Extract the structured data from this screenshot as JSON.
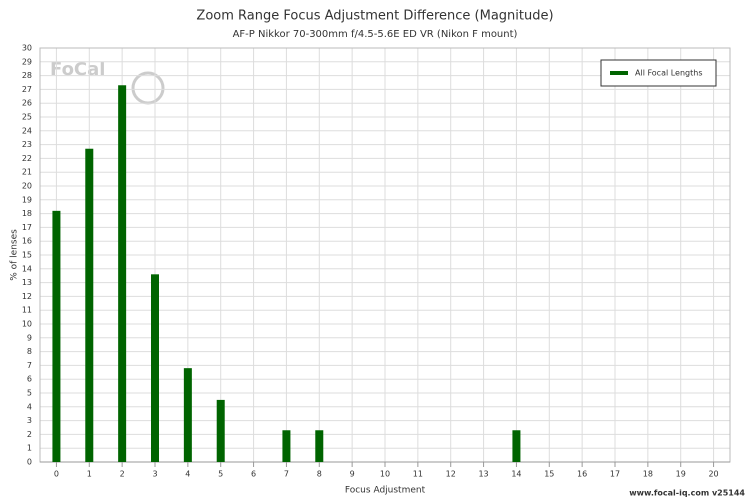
{
  "chart_data": {
    "type": "bar",
    "title": "Zoom Range Focus Adjustment Difference (Magnitude)",
    "subtitle": "AF-P Nikkor 70-300mm f/4.5-5.6E ED VR (Nikon F mount)",
    "x_label": "Focus Adjustment",
    "y_label": "% of lenses",
    "logo": "FoCal",
    "footer": "www.focal-iq.com  v25144",
    "categories": [
      "0",
      "1",
      "2",
      "3",
      "4",
      "5",
      "6",
      "7",
      "8",
      "9",
      "10",
      "11",
      "12",
      "13",
      "14",
      "15",
      "16",
      "17",
      "18",
      "19",
      "20"
    ],
    "series": [
      {
        "name": "All Focal Lengths",
        "color": "#006400",
        "values": [
          18.2,
          22.7,
          27.3,
          13.6,
          6.8,
          4.5,
          0,
          2.3,
          2.3,
          0,
          0,
          0,
          0,
          0,
          2.3,
          0,
          0,
          0,
          0,
          0,
          0
        ]
      }
    ],
    "ylim": [
      0,
      30
    ],
    "yticks": [
      0,
      1,
      2,
      3,
      4,
      5,
      6,
      7,
      8,
      9,
      10,
      11,
      12,
      13,
      14,
      15,
      16,
      17,
      18,
      19,
      20,
      21,
      22,
      23,
      24,
      25,
      26,
      27,
      28,
      29,
      30
    ],
    "grid": true,
    "legend": "top-right"
  }
}
